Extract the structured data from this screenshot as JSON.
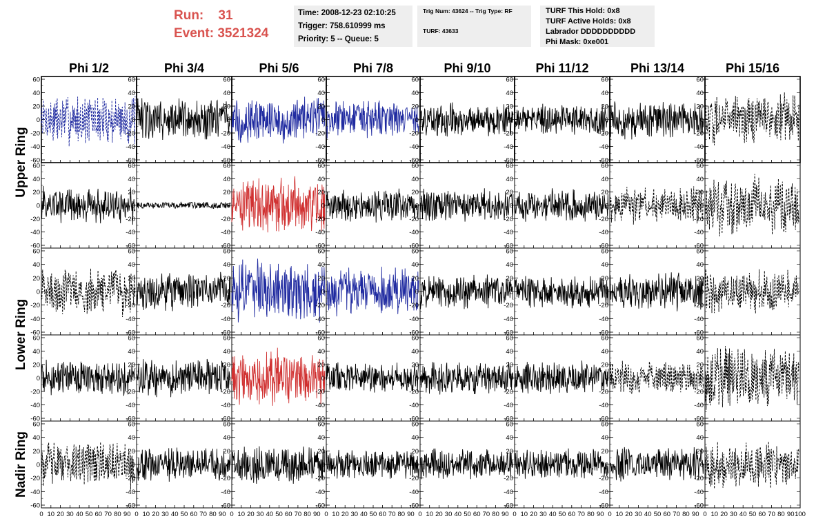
{
  "header": {
    "run_label": "Run:",
    "run_value": "31",
    "event_label": "Event:",
    "event_value": "3521324"
  },
  "info_time": {
    "time": "Time: 2008-12-23 02:10:25",
    "trigger": "Trigger: 758.610999 ms",
    "priority": "Priority: 5 -- Queue: 5"
  },
  "info_trig": {
    "trig": "Trig Num: 43624 -- Trig Type: RF",
    "turf": "TURF: 43633"
  },
  "info_turf": {
    "this_hold": "TURF This Hold: 0x8",
    "active_holds": "TURF Active Holds: 0x8",
    "labrador": "Labrador DDDDDDDDDD",
    "phi_mask": "Phi Mask: 0xe001"
  },
  "chart_data": {
    "type": "line",
    "columns": [
      "Phi 1/2",
      "Phi 3/4",
      "Phi 5/6",
      "Phi 7/8",
      "Phi 9/10",
      "Phi 11/12",
      "Phi 13/14",
      "Phi 15/16"
    ],
    "row_labels": [
      {
        "label": "Upper Ring",
        "rows": [
          0,
          1
        ]
      },
      {
        "label": "Lower Ring",
        "rows": [
          2,
          3
        ]
      },
      {
        "label": "Nadir Ring",
        "rows": [
          4
        ]
      }
    ],
    "xlim": [
      0,
      100
    ],
    "ylim": [
      -60,
      60
    ],
    "x_ticks": [
      0,
      10,
      20,
      30,
      40,
      50,
      60,
      70,
      80,
      90,
      100
    ],
    "y_ticks": [
      -60,
      -40,
      -20,
      0,
      20,
      40,
      60
    ],
    "colors": {
      "black": "#000000",
      "blue": "#1f2aa0",
      "red": "#d03030"
    },
    "panels": [
      [
        {
          "color": "blue",
          "style": "dashed",
          "amp": 22
        },
        {
          "color": "black",
          "style": "solid",
          "amp": 18
        },
        {
          "color": "blue",
          "style": "solid",
          "amp": 20
        },
        {
          "color": "blue",
          "style": "solid",
          "amp": 16
        },
        {
          "color": "black",
          "style": "solid",
          "amp": 14
        },
        {
          "color": "black",
          "style": "solid",
          "amp": 13
        },
        {
          "color": "black",
          "style": "solid",
          "amp": 16
        },
        {
          "color": "black",
          "style": "dashed",
          "amp": 22
        }
      ],
      [
        {
          "color": "black",
          "style": "solid",
          "amp": 16
        },
        {
          "color": "black",
          "style": "solid",
          "amp": 3
        },
        {
          "color": "red",
          "style": "solid",
          "amp": 24
        },
        {
          "color": "black",
          "style": "solid",
          "amp": 14
        },
        {
          "color": "black",
          "style": "solid",
          "amp": 14
        },
        {
          "color": "black",
          "style": "solid",
          "amp": 14
        },
        {
          "color": "black",
          "style": "dashed",
          "amp": 16
        },
        {
          "color": "black",
          "style": "dashed",
          "amp": 26
        }
      ],
      [
        {
          "color": "black",
          "style": "dashed",
          "amp": 20
        },
        {
          "color": "black",
          "style": "solid",
          "amp": 16
        },
        {
          "color": "blue",
          "style": "solid",
          "amp": 26
        },
        {
          "color": "blue",
          "style": "solid",
          "amp": 20
        },
        {
          "color": "black",
          "style": "solid",
          "amp": 15
        },
        {
          "color": "black",
          "style": "solid",
          "amp": 14
        },
        {
          "color": "black",
          "style": "solid",
          "amp": 16
        },
        {
          "color": "black",
          "style": "dashed",
          "amp": 18
        }
      ],
      [
        {
          "color": "black",
          "style": "solid",
          "amp": 15
        },
        {
          "color": "black",
          "style": "solid",
          "amp": 16
        },
        {
          "color": "red",
          "style": "solid",
          "amp": 24
        },
        {
          "color": "black",
          "style": "solid",
          "amp": 13
        },
        {
          "color": "black",
          "style": "solid",
          "amp": 14
        },
        {
          "color": "black",
          "style": "solid",
          "amp": 14
        },
        {
          "color": "black",
          "style": "dashed",
          "amp": 15
        },
        {
          "color": "black",
          "style": "dashed",
          "amp": 26
        }
      ],
      [
        {
          "color": "black",
          "style": "dashed",
          "amp": 20
        },
        {
          "color": "black",
          "style": "solid",
          "amp": 14
        },
        {
          "color": "black",
          "style": "solid",
          "amp": 16
        },
        {
          "color": "black",
          "style": "solid",
          "amp": 13
        },
        {
          "color": "black",
          "style": "solid",
          "amp": 13
        },
        {
          "color": "black",
          "style": "solid",
          "amp": 13
        },
        {
          "color": "black",
          "style": "solid",
          "amp": 14
        },
        {
          "color": "black",
          "style": "dashed",
          "amp": 20
        }
      ]
    ]
  }
}
